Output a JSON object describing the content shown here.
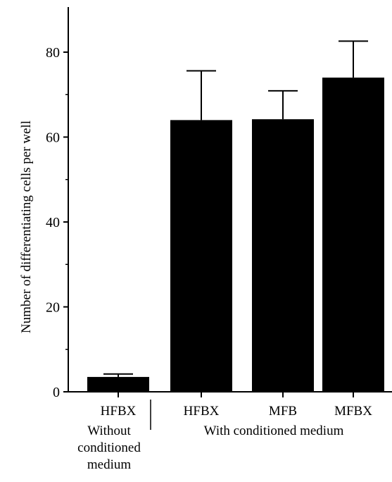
{
  "chart_data": {
    "type": "bar",
    "title": "",
    "xlabel": "",
    "ylabel": "Number of differentiating cells per well",
    "ylim": [
      0,
      90
    ],
    "yticks": [
      0,
      20,
      40,
      60,
      80
    ],
    "grid": false,
    "legend": "none",
    "categories": [
      "HFBX",
      "HFBX",
      "MFB",
      "MFBX"
    ],
    "values": [
      3.5,
      64,
      64.2,
      74
    ],
    "error_upper": [
      4.2,
      75.6,
      70.9,
      82.6
    ],
    "bar_color": "#000000",
    "groups": [
      {
        "label_lines": [
          "Without",
          "conditioned",
          "medium"
        ],
        "categories": [
          0
        ]
      },
      {
        "label_lines": [
          "With conditioned medium"
        ],
        "categories": [
          1,
          2,
          3
        ]
      }
    ]
  }
}
